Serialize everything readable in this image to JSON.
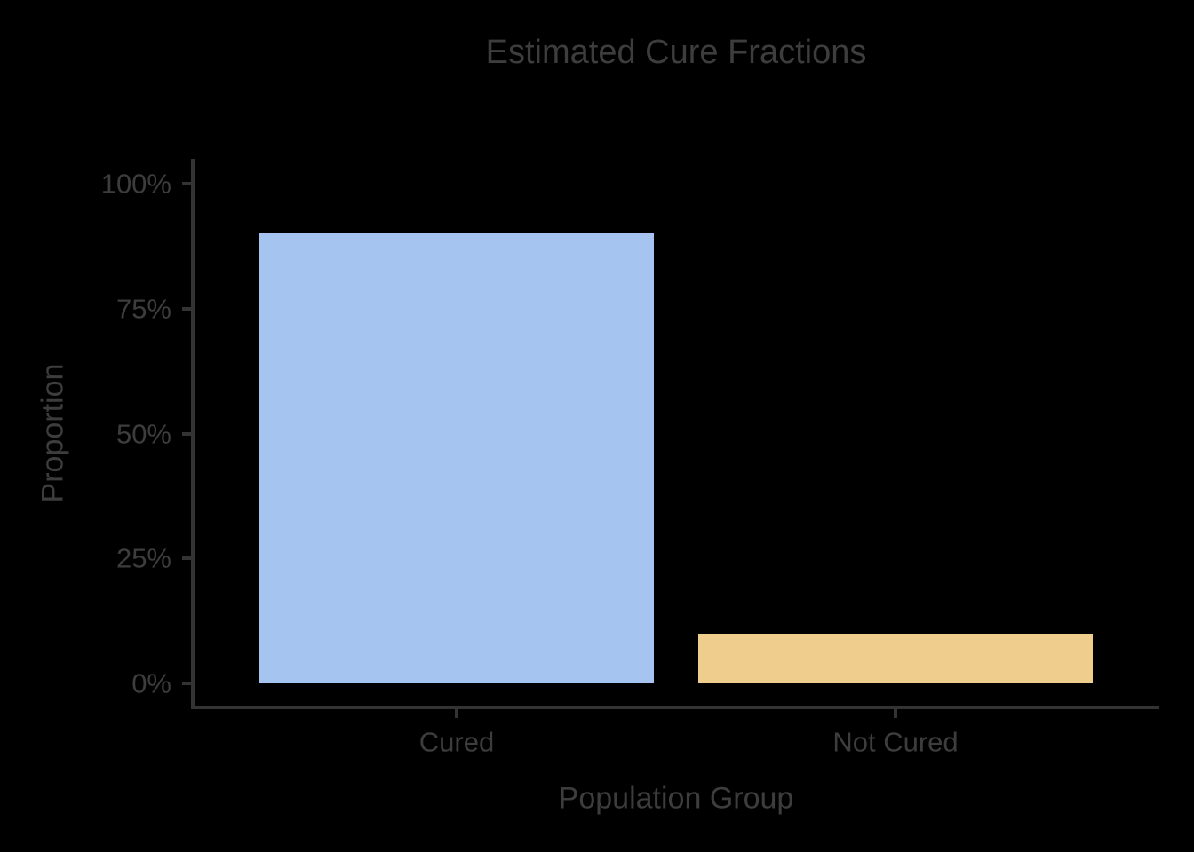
{
  "chart_data": {
    "type": "bar",
    "title": "Estimated Cure Fractions",
    "xlabel": "Population Group",
    "ylabel": "Proportion",
    "categories": [
      "Cured",
      "Not Cured"
    ],
    "values": [
      0.9,
      0.1
    ],
    "yticks": {
      "values": [
        0,
        0.25,
        0.5,
        0.75,
        1.0
      ],
      "labels": [
        "0%",
        "25%",
        "50%",
        "75%",
        "100%"
      ]
    },
    "ylim": [
      0,
      1.0
    ],
    "grid": false,
    "legend": false,
    "colors": {
      "bars": [
        "#a5c4f0",
        "#efcd8c"
      ],
      "background": "#000000",
      "text": "#3d3d3d",
      "axis": "#333333"
    }
  }
}
